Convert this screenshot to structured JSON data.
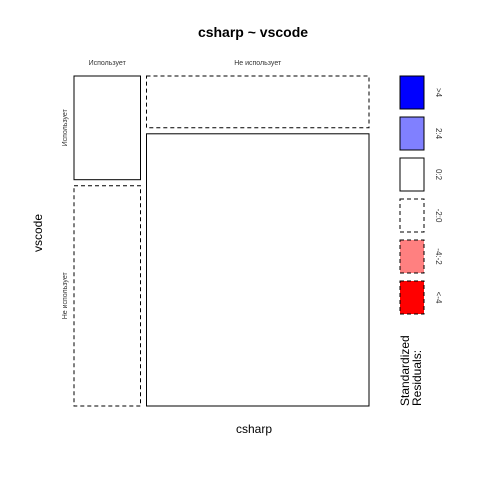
{
  "chart_data": {
    "type": "mosaic",
    "title": "csharp ~ vscode",
    "xlabel": "csharp",
    "ylabel": "vscode",
    "x_levels": [
      "Использует",
      "Не использует"
    ],
    "y_levels": [
      "Использует",
      "Не использует"
    ],
    "x_proportions": [
      0.23,
      0.77
    ],
    "y_proportions_within_x": [
      [
        0.32,
        0.68
      ],
      [
        0.16,
        0.84
      ]
    ],
    "cells": [
      {
        "x_level": "Использует",
        "y_level": "Использует",
        "residual_class": "0:2"
      },
      {
        "x_level": "Использует",
        "y_level": "Не использует",
        "residual_class": "-2:0"
      },
      {
        "x_level": "Не использует",
        "y_level": "Использует",
        "residual_class": "-2:0"
      },
      {
        "x_level": "Не использует",
        "y_level": "Не использует",
        "residual_class": "0:2"
      }
    ],
    "legend": {
      "title_lines": [
        "Standardized",
        "Residuals:"
      ],
      "items": [
        {
          "label": ">4",
          "fill": "#0000ff",
          "dashed": false
        },
        {
          "label": "2:4",
          "fill": "#8080ff",
          "dashed": false
        },
        {
          "label": "0:2",
          "fill": "#ffffff",
          "dashed": false
        },
        {
          "label": "-2:0",
          "fill": "#ffffff",
          "dashed": true
        },
        {
          "label": "-4:-2",
          "fill": "#ff8080",
          "dashed": true
        },
        {
          "label": "<-4",
          "fill": "#ff0000",
          "dashed": true
        }
      ]
    }
  }
}
